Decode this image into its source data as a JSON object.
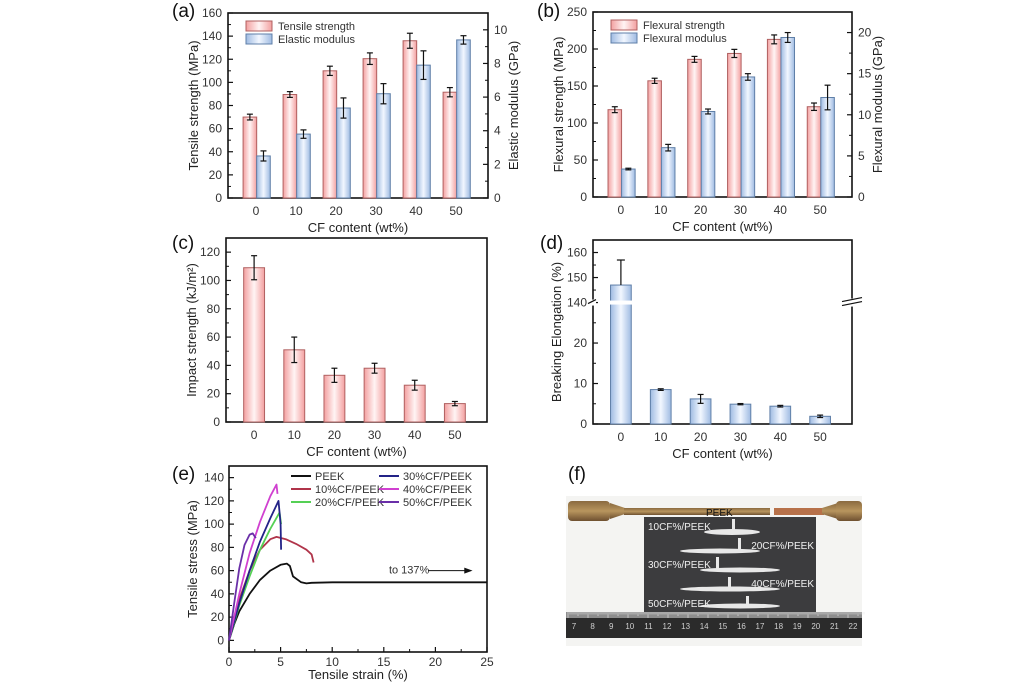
{
  "figure": {
    "panel_labels": [
      "(a)",
      "(b)",
      "(c)",
      "(d)",
      "(e)",
      "(f)"
    ]
  },
  "chart_data": [
    {
      "id": "a",
      "type": "bar",
      "panel_label": "(a)",
      "categories": [
        "0",
        "10",
        "20",
        "30",
        "40",
        "50"
      ],
      "xlabel": "CF content (wt%)",
      "ylabel": "Tensile strength (MPa)",
      "ylabel2": "Elastic modulus (GPa)",
      "ylim": [
        0,
        160
      ],
      "yticks": [
        0,
        20,
        40,
        60,
        80,
        100,
        120,
        140,
        160
      ],
      "ylim2": [
        0,
        11
      ],
      "yticks2": [
        0,
        2,
        4,
        6,
        8,
        10
      ],
      "legend_position": "top-left",
      "series": [
        {
          "name": "Tensile strength",
          "axis": "left",
          "color": "#f4a6a6",
          "values": [
            70,
            89.5,
            110,
            120.5,
            136,
            91.5
          ],
          "errors": [
            2.5,
            2.5,
            4,
            5,
            6.5,
            4
          ]
        },
        {
          "name": "Elastic modulus",
          "axis": "right",
          "color": "#a9c4e8",
          "values": [
            2.5,
            3.8,
            5.35,
            6.2,
            7.9,
            9.4
          ],
          "errors": [
            0.3,
            0.25,
            0.6,
            0.6,
            0.85,
            0.25
          ]
        }
      ]
    },
    {
      "id": "b",
      "type": "bar",
      "panel_label": "(b)",
      "categories": [
        "0",
        "10",
        "20",
        "30",
        "40",
        "50"
      ],
      "xlabel": "CF content (wt%)",
      "ylabel": "Flexural strength (MPa)",
      "ylabel2": "Flexural modulus (GPa)",
      "ylim": [
        0,
        250
      ],
      "yticks": [
        0,
        50,
        100,
        150,
        200,
        250
      ],
      "ylim2": [
        0,
        22.5
      ],
      "yticks2": [
        0,
        5,
        10,
        15,
        20
      ],
      "legend_position": "top-left",
      "series": [
        {
          "name": "Flexural strength",
          "axis": "left",
          "color": "#f4a6a6",
          "values": [
            118,
            157,
            186,
            194,
            213,
            122
          ],
          "errors": [
            4,
            3.5,
            4,
            5.5,
            6,
            5
          ]
        },
        {
          "name": "Flexural modulus",
          "axis": "right",
          "color": "#a9c4e8",
          "values": [
            3.4,
            6.0,
            10.4,
            14.6,
            19.4,
            12.1
          ],
          "errors": [
            0.1,
            0.4,
            0.3,
            0.4,
            0.6,
            1.5
          ]
        }
      ]
    },
    {
      "id": "c",
      "type": "bar",
      "panel_label": "(c)",
      "categories": [
        "0",
        "10",
        "20",
        "30",
        "40",
        "50"
      ],
      "xlabel": "CF content (wt%)",
      "ylabel": "Impact strength (kJ/m²)",
      "ylim": [
        0,
        130
      ],
      "yticks": [
        0,
        20,
        40,
        60,
        80,
        100,
        120
      ],
      "series": [
        {
          "name": "Impact strength",
          "color": "#f4a6a6",
          "values": [
            109,
            51,
            33,
            38,
            26,
            13
          ],
          "errors": [
            8.5,
            9,
            5,
            3.5,
            3.5,
            1.5
          ]
        }
      ]
    },
    {
      "id": "d",
      "type": "bar",
      "panel_label": "(d)",
      "categories": [
        "0",
        "10",
        "20",
        "30",
        "40",
        "50"
      ],
      "xlabel": "CF content (wt%)",
      "ylabel": "Breaking Elongation (%)",
      "axis_break": {
        "lower_range": [
          0,
          30
        ],
        "upper_range": [
          140,
          165
        ]
      },
      "yticks": [
        0,
        10,
        20,
        140,
        150,
        160
      ],
      "series": [
        {
          "name": "Breaking Elongation",
          "color": "#a9c4e8",
          "values": [
            147,
            8.5,
            6.2,
            4.9,
            4.4,
            1.9
          ],
          "errors": [
            10,
            0.2,
            1.1,
            0.15,
            0.2,
            0.3
          ]
        }
      ]
    },
    {
      "id": "e",
      "type": "line",
      "panel_label": "(e)",
      "xlabel": "Tensile strain (%)",
      "ylabel": "Tensile stress (MPa)",
      "xlim": [
        0,
        25
      ],
      "xticks": [
        0,
        5,
        10,
        15,
        20,
        25
      ],
      "ylim": [
        -10,
        150
      ],
      "yticks": [
        0,
        20,
        40,
        60,
        80,
        100,
        120,
        140
      ],
      "legend_position": "top-right",
      "annotation": "to 137%",
      "series": [
        {
          "name": "PEEK",
          "color": "#111111",
          "x": [
            0,
            0.5,
            1,
            2,
            3,
            4,
            5,
            5.6,
            5.9,
            6.2,
            7,
            7.5,
            8,
            10,
            15,
            20,
            25
          ],
          "y": [
            0,
            14,
            25,
            40,
            52,
            60,
            65,
            66,
            64,
            55,
            50,
            49,
            49.5,
            50,
            50,
            50,
            50
          ]
        },
        {
          "name": "10%CF/PEEK",
          "color": "#b0344a",
          "x": [
            0,
            1,
            2,
            3,
            4,
            4.6,
            5.5,
            6.5,
            7.5,
            8,
            8.2
          ],
          "y": [
            0,
            35,
            60,
            78,
            87,
            89,
            87,
            83,
            78,
            74,
            67
          ]
        },
        {
          "name": "20%CF/PEEK",
          "color": "#55d055",
          "x": [
            0,
            1,
            2,
            3,
            4,
            4.9,
            5.05
          ],
          "y": [
            0,
            30,
            55,
            78,
            96,
            110,
            100
          ]
        },
        {
          "name": "30%CF/PEEK",
          "color": "#232387",
          "x": [
            0,
            1,
            2,
            3,
            4,
            4.8,
            5.0,
            5.05
          ],
          "y": [
            0,
            32,
            60,
            85,
            105,
            120,
            100,
            78
          ]
        },
        {
          "name": "40%CF/PEEK",
          "color": "#d040d0",
          "x": [
            0,
            1,
            2,
            3,
            4,
            4.6,
            4.7
          ],
          "y": [
            0,
            40,
            75,
            102,
            124,
            134,
            126
          ]
        },
        {
          "name": "50%CF/PEEK",
          "color": "#6a2fa8",
          "x": [
            0,
            0.5,
            1,
            1.5,
            2,
            2.3,
            2.6
          ],
          "y": [
            0,
            32,
            62,
            82,
            91,
            92,
            88
          ]
        }
      ]
    }
  ],
  "photo": {
    "panel_label": "(f)",
    "top_specimen_label": "PEEK",
    "specimen_labels": [
      "10CF%/PEEK",
      "20CF%/PEEK",
      "30CF%/PEEK",
      "40CF%/PEEK",
      "50CF%/PEEK"
    ],
    "ruler_numbers": [
      "7",
      "8",
      "9",
      "10",
      "11",
      "12",
      "13",
      "14",
      "15",
      "16",
      "17",
      "18",
      "19",
      "20",
      "21",
      "22"
    ]
  }
}
